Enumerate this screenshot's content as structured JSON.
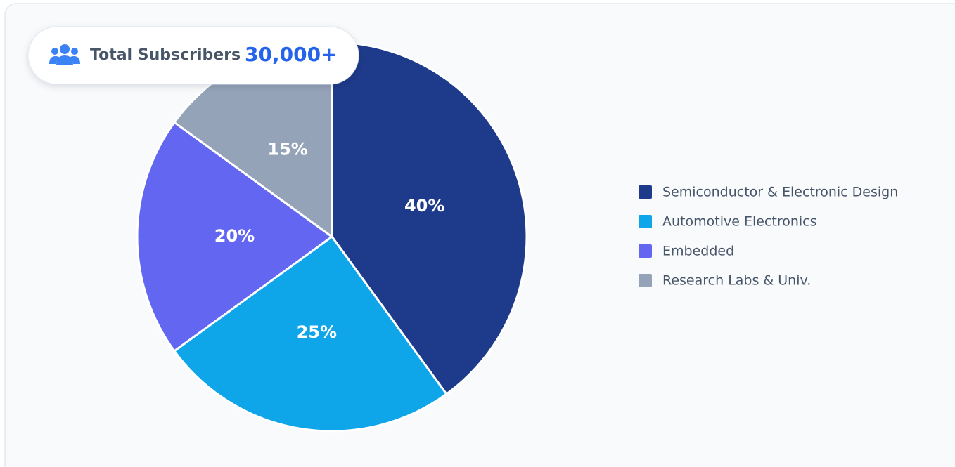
{
  "badge": {
    "label": "Total Subscribers",
    "value": "30,000+"
  },
  "chart_data": {
    "type": "pie",
    "categories": [
      "Semiconductor & Electronic Design",
      "Automotive Electronics",
      "Embedded",
      "Research Labs & Univ."
    ],
    "values": [
      40,
      25,
      20,
      15
    ],
    "value_labels": [
      "40%",
      "25%",
      "20%",
      "15%"
    ],
    "colors": [
      "#1e3a8a",
      "#0ea5e9",
      "#6366f1",
      "#94a3b8"
    ],
    "legend": "right"
  }
}
